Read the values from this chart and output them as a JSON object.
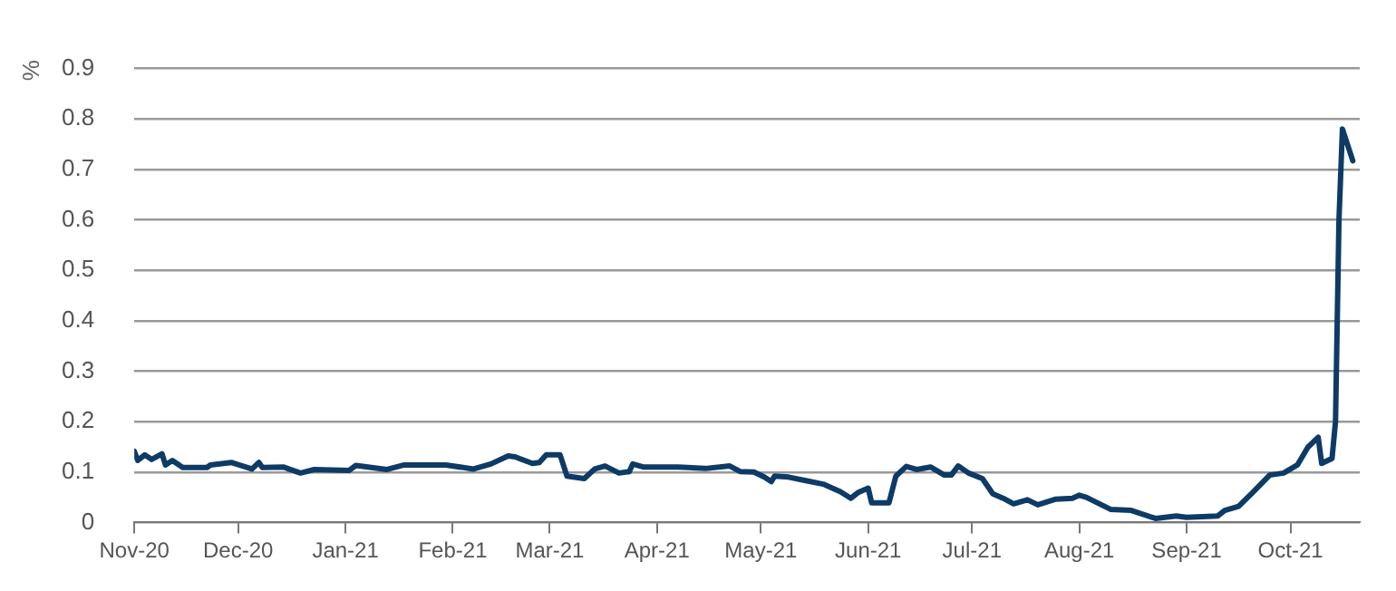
{
  "chart_data": {
    "type": "line",
    "ylabel": "%",
    "x": [
      "2020-11-01",
      "2020-11-02",
      "2020-11-04",
      "2020-11-06",
      "2020-11-09",
      "2020-11-10",
      "2020-11-12",
      "2020-11-15",
      "2020-11-22",
      "2020-11-23",
      "2020-11-29",
      "2020-12-05",
      "2020-12-07",
      "2020-12-08",
      "2020-12-14",
      "2020-12-19",
      "2020-12-23",
      "2021-01-02",
      "2021-01-04",
      "2021-01-13",
      "2021-01-18",
      "2021-01-30",
      "2021-02-07",
      "2021-02-12",
      "2021-02-17",
      "2021-02-19",
      "2021-02-24",
      "2021-02-26",
      "2021-02-28",
      "2021-03-04",
      "2021-03-06",
      "2021-03-11",
      "2021-03-14",
      "2021-03-17",
      "2021-03-21",
      "2021-03-24",
      "2021-03-25",
      "2021-03-28",
      "2021-04-07",
      "2021-04-15",
      "2021-04-22",
      "2021-04-25",
      "2021-04-29",
      "2021-05-02",
      "2021-05-04",
      "2021-05-05",
      "2021-05-09",
      "2021-05-14",
      "2021-05-19",
      "2021-05-24",
      "2021-05-27",
      "2021-05-29",
      "2021-06-01",
      "2021-06-02",
      "2021-06-07",
      "2021-06-09",
      "2021-06-12",
      "2021-06-15",
      "2021-06-19",
      "2021-06-23",
      "2021-06-25",
      "2021-06-27",
      "2021-06-30",
      "2021-07-04",
      "2021-07-07",
      "2021-07-10",
      "2021-07-13",
      "2021-07-17",
      "2021-07-20",
      "2021-07-25",
      "2021-07-30",
      "2021-08-01",
      "2021-08-03",
      "2021-08-10",
      "2021-08-16",
      "2021-08-23",
      "2021-08-29",
      "2021-09-01",
      "2021-09-10",
      "2021-09-12",
      "2021-09-16",
      "2021-09-20",
      "2021-09-25",
      "2021-09-29",
      "2021-10-03",
      "2021-10-06",
      "2021-10-09",
      "2021-10-10",
      "2021-10-13",
      "2021-10-14",
      "2021-10-15",
      "2021-10-16",
      "2021-10-19"
    ],
    "series": [
      {
        "color": "#0d3b66",
        "values": [
          0.141,
          0.123,
          0.134,
          0.125,
          0.136,
          0.114,
          0.123,
          0.109,
          0.109,
          0.114,
          0.119,
          0.106,
          0.119,
          0.109,
          0.11,
          0.098,
          0.105,
          0.103,
          0.113,
          0.105,
          0.114,
          0.114,
          0.106,
          0.116,
          0.132,
          0.13,
          0.117,
          0.119,
          0.134,
          0.134,
          0.092,
          0.087,
          0.106,
          0.112,
          0.098,
          0.101,
          0.116,
          0.11,
          0.11,
          0.107,
          0.112,
          0.101,
          0.1,
          0.09,
          0.081,
          0.092,
          0.09,
          0.083,
          0.076,
          0.061,
          0.048,
          0.059,
          0.068,
          0.039,
          0.039,
          0.092,
          0.111,
          0.105,
          0.11,
          0.094,
          0.094,
          0.112,
          0.098,
          0.087,
          0.057,
          0.048,
          0.037,
          0.045,
          0.035,
          0.046,
          0.048,
          0.054,
          0.05,
          0.026,
          0.024,
          0.008,
          0.013,
          0.01,
          0.013,
          0.024,
          0.032,
          0.059,
          0.094,
          0.098,
          0.114,
          0.149,
          0.169,
          0.117,
          0.127,
          0.2,
          0.6,
          0.78,
          0.717
        ]
      }
    ],
    "xlim": [
      "2020-11-01",
      "2021-10-21"
    ],
    "xticks": [
      {
        "value": "2020-11-01",
        "label": "Nov-20"
      },
      {
        "value": "2020-12-01",
        "label": "Dec-20"
      },
      {
        "value": "2021-01-01",
        "label": "Jan-21"
      },
      {
        "value": "2021-02-01",
        "label": "Feb-21"
      },
      {
        "value": "2021-03-01",
        "label": "Mar-21"
      },
      {
        "value": "2021-04-01",
        "label": "Apr-21"
      },
      {
        "value": "2021-05-01",
        "label": "May-21"
      },
      {
        "value": "2021-06-01",
        "label": "Jun-21"
      },
      {
        "value": "2021-07-01",
        "label": "Jul-21"
      },
      {
        "value": "2021-08-01",
        "label": "Aug-21"
      },
      {
        "value": "2021-09-01",
        "label": "Sep-21"
      },
      {
        "value": "2021-10-01",
        "label": "Oct-21"
      }
    ],
    "ylim": [
      0,
      0.9
    ],
    "yticks": [
      0,
      0.1,
      0.2,
      0.3,
      0.4,
      0.5,
      0.6,
      0.7,
      0.8,
      0.9
    ],
    "grid": "y",
    "legend": false,
    "marker": "none",
    "line_style": "solid"
  }
}
